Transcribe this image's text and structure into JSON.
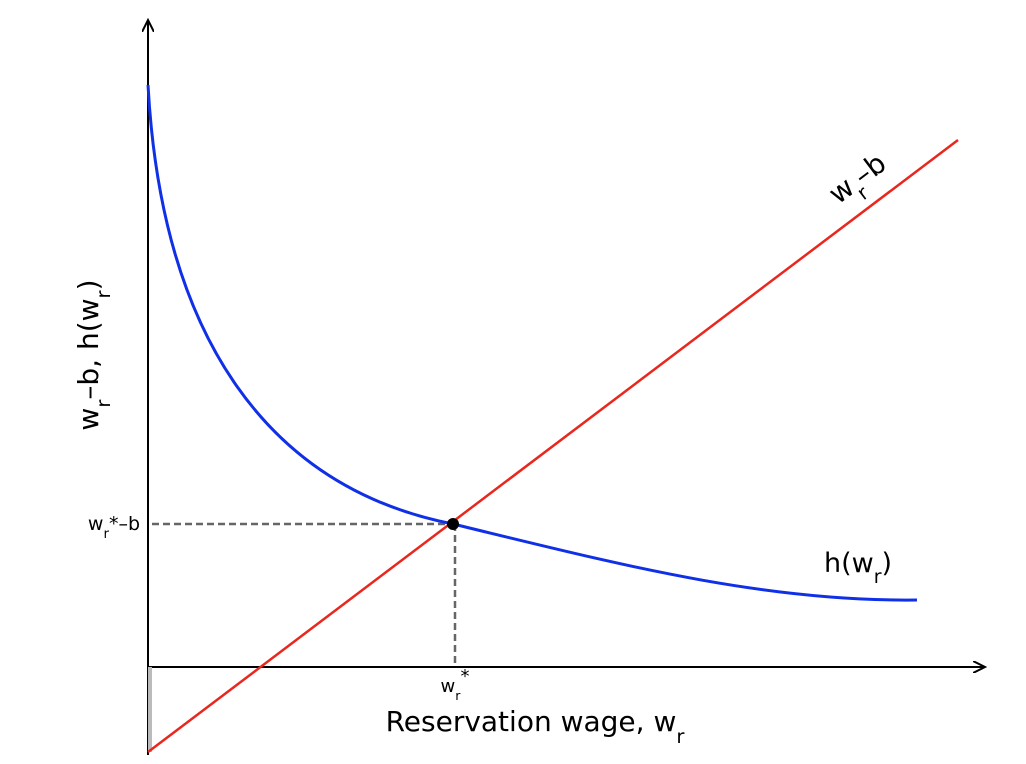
{
  "y_axis_label": [
    "w",
    "r",
    "–b, h(w",
    "r",
    ")"
  ],
  "x_axis_label": [
    "Reservation wage, w",
    "r"
  ],
  "line_label": [
    "w",
    "r",
    "–b"
  ],
  "curve_label": [
    "h(w",
    "r",
    ")"
  ],
  "equilibrium_y_label": [
    "w",
    "r",
    "*–b"
  ],
  "equilibrium_x_label": [
    "w",
    "r",
    "*"
  ]
}
